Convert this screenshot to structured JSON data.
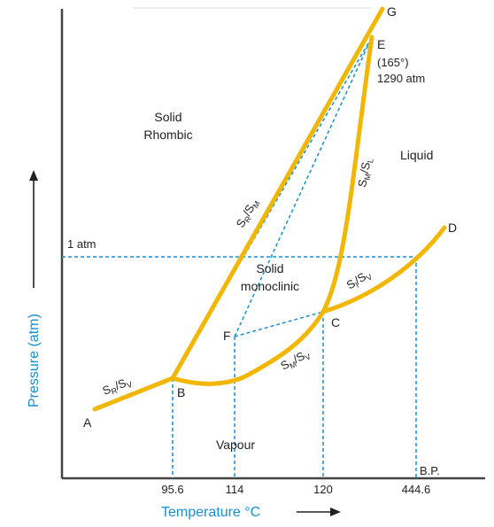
{
  "colors": {
    "curve": "#f2b705",
    "dashed": "#1a8fd0",
    "axis": "#444444",
    "axis_title": "#1a8fd0",
    "text": "#222222"
  },
  "axes": {
    "x_title": "Temperature °C",
    "y_title": "Pressure (atm)",
    "x_ticks": [
      "95.6",
      "114",
      "120",
      "444.6"
    ],
    "one_atm": "1 atm",
    "bp": "B.P."
  },
  "regions": {
    "solid_rhombic_1": "Solid",
    "solid_rhombic_2": "Rhombic",
    "solid_monoclinic_1": "Solid",
    "solid_monoclinic_2": "monoclinic",
    "liquid": "Liquid",
    "vapour": "Vapour"
  },
  "points": {
    "A": "A",
    "B": "B",
    "C": "C",
    "D": "D",
    "E": "E",
    "F": "F",
    "G": "G",
    "E_temp": "(165°)",
    "E_pressure": "1290 atm"
  },
  "curve_labels": {
    "sr_sv": {
      "main1": "S",
      "sub1": "R",
      "sep": "/",
      "main2": "S",
      "sub2": "V"
    },
    "sr_sm": {
      "main1": "S",
      "sub1": "R",
      "sep": "/",
      "main2": "S",
      "sub2": "M"
    },
    "sm_sl": {
      "main1": "S",
      "sub1": "M",
      "sep": "/",
      "main2": "S",
      "sub2": "L"
    },
    "sl_sv": {
      "main1": "S",
      "sub1": "l",
      "sep": "/",
      "main2": "S",
      "sub2": "V"
    },
    "sm_sv": {
      "main1": "S",
      "sub1": "M",
      "sep": "/",
      "main2": "S",
      "sub2": "V"
    }
  }
}
